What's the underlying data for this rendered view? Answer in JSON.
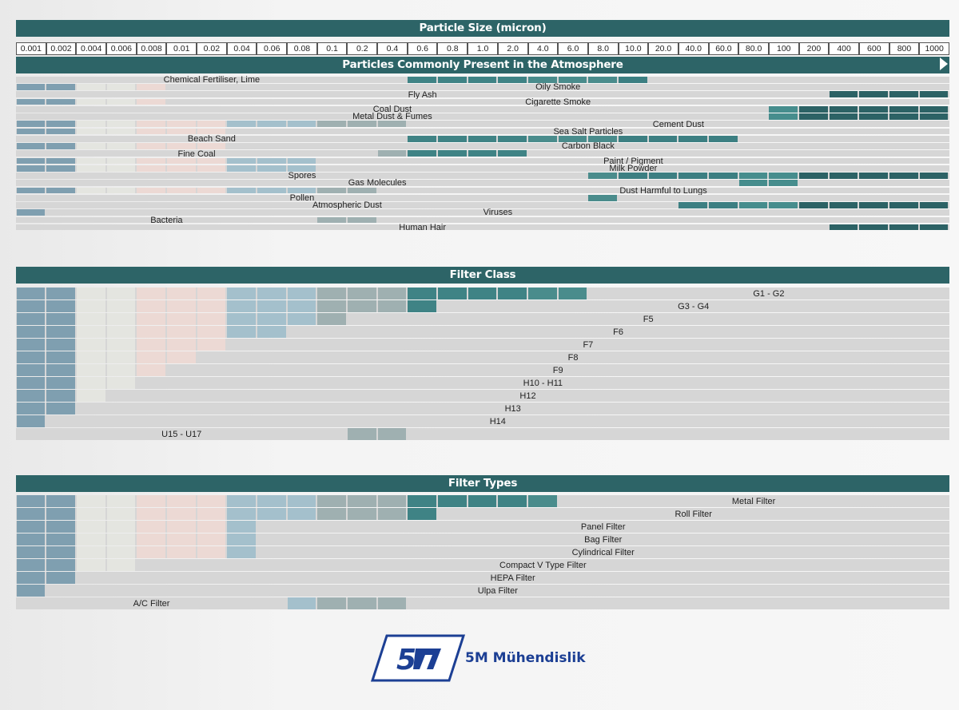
{
  "chart_data": {
    "type": "table",
    "title": "Particle Size (micron)",
    "x": [
      "0.001",
      "0.002",
      "0.004",
      "0.006",
      "0.008",
      "0.01",
      "0.02",
      "0.04",
      "0.06",
      "0.08",
      "0.1",
      "0.2",
      "0.4",
      "0.6",
      "0.8",
      "1.0",
      "2.0",
      "4.0",
      "6.0",
      "8.0",
      "10.0",
      "20.0",
      "40.0",
      "60.0",
      "80.0",
      "100",
      "200",
      "400",
      "600",
      "800",
      "1000"
    ],
    "sections": [
      {
        "title": "Particles Commonly  Present in the Atmosphere",
        "rows": [
          {
            "label": "Chemical Fertiliser, Lime",
            "start": 13,
            "end": 20
          },
          {
            "label": "Oily Smoke",
            "start": 0,
            "end": 4
          },
          {
            "label": "Fly Ash",
            "start": 27,
            "end": 30
          },
          {
            "label": "Cigarette Smoke",
            "start": 0,
            "end": 4
          },
          {
            "label": "Coal Dust",
            "start": 25,
            "end": 30
          },
          {
            "label": "Metal Dust & Fumes",
            "start": 25,
            "end": 30
          },
          {
            "label": "Cement Dust",
            "start": 0,
            "end": 12
          },
          {
            "label": "Sea Salt Particles",
            "start": 0,
            "end": 6
          },
          {
            "label": "Beach Sand",
            "start": 13,
            "end": 23
          },
          {
            "label": "Carbon Black",
            "start": 0,
            "end": 6
          },
          {
            "label": "Fine Coal",
            "start": 12,
            "end": 16
          },
          {
            "label": "Paint / Pigment",
            "start": 0,
            "end": 9
          },
          {
            "label": "Milk Powder",
            "start": 0,
            "end": 9
          },
          {
            "label": "Spores",
            "start": 19,
            "end": 30
          },
          {
            "label": "Gas Molecules",
            "start": 24,
            "end": 25
          },
          {
            "label": "Dust Harmful to Lungs",
            "start": 0,
            "end": 11
          },
          {
            "label": "Pollen",
            "start": 19,
            "end": 19
          },
          {
            "label": "Atmospheric Dust",
            "start": 22,
            "end": 30
          },
          {
            "label": "Viruses",
            "start": 0,
            "end": 0
          },
          {
            "label": "Bacteria",
            "start": 10,
            "end": 11
          },
          {
            "label": "Human Hair",
            "start": 27,
            "end": 30
          }
        ]
      },
      {
        "title": "Filter Class",
        "rows": [
          {
            "label": "G1 - G2",
            "start": 0,
            "end": 18
          },
          {
            "label": "G3 - G4",
            "start": 0,
            "end": 13
          },
          {
            "label": "F5",
            "start": 0,
            "end": 10
          },
          {
            "label": "F6",
            "start": 0,
            "end": 8
          },
          {
            "label": "F7",
            "start": 0,
            "end": 6
          },
          {
            "label": "F8",
            "start": 0,
            "end": 5
          },
          {
            "label": "F9",
            "start": 0,
            "end": 4
          },
          {
            "label": "H10 - H11",
            "start": 0,
            "end": 3
          },
          {
            "label": "H12",
            "start": 0,
            "end": 2
          },
          {
            "label": "H13",
            "start": 0,
            "end": 1
          },
          {
            "label": "H14",
            "start": 0,
            "end": 0
          },
          {
            "label": "U15 - U17",
            "start": 11,
            "end": 12
          }
        ]
      },
      {
        "title": "Filter Types",
        "rows": [
          {
            "label": "Metal Filter",
            "start": 0,
            "end": 17
          },
          {
            "label": "Roll Filter",
            "start": 0,
            "end": 13
          },
          {
            "label": "Panel Filter",
            "start": 0,
            "end": 7
          },
          {
            "label": "Bag Filter",
            "start": 0,
            "end": 7
          },
          {
            "label": "Cylindrical Filter",
            "start": 0,
            "end": 7
          },
          {
            "label": "Compact V Type Filter",
            "start": 0,
            "end": 3
          },
          {
            "label": "HEPA Filter",
            "start": 0,
            "end": 1
          },
          {
            "label": "Ulpa Filter",
            "start": 0,
            "end": 0
          },
          {
            "label": "A/C Filter",
            "start": 9,
            "end": 12
          }
        ]
      }
    ]
  },
  "logo_text": "5M Mühendislik",
  "colors": {
    "band": "#2d6467",
    "empty": "#d6d6d6",
    "columns": [
      "#7f9fb0",
      "#7f9fb0",
      "#e4e5e0",
      "#e4e5e0",
      "#ecd9d4",
      "#ecd9d4",
      "#ecd9d4",
      "#a4c0cc",
      "#a4c0cc",
      "#a4c0cc",
      "#9fb0b1",
      "#9fb0b1",
      "#9fb0b1",
      "#3f8385",
      "#3f8385",
      "#3f8385",
      "#3f8385",
      "#4a8c8c",
      "#4a8c8c",
      "#4a8c8c",
      "#3c7f82",
      "#3c7f82",
      "#3c7f82",
      "#3c7f82",
      "#468d8d",
      "#468d8d",
      "#2c6265",
      "#2c6265",
      "#2c6265",
      "#2c6265",
      "#2c6265"
    ]
  }
}
